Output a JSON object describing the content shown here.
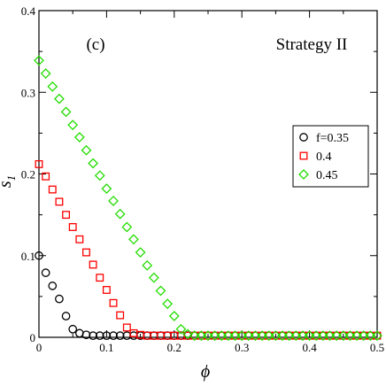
{
  "chart_data": {
    "type": "scatter",
    "panel_label": "(c)",
    "annotation": "Strategy II",
    "xlabel": "ϕ",
    "ylabel": "s",
    "ylabel_subscript": "1",
    "xlim": [
      0,
      0.5
    ],
    "ylim": [
      0,
      0.4
    ],
    "x_ticks": [
      0,
      0.1,
      0.2,
      0.3,
      0.4,
      0.5
    ],
    "x_tick_labels": [
      "0",
      "0.1",
      "0.2",
      "0.3",
      "0.4",
      "0.5"
    ],
    "y_ticks": [
      0,
      0.1,
      0.2,
      0.3,
      0.4
    ],
    "y_tick_labels": [
      "0",
      "0.1",
      "0.2",
      "0.3",
      "0.4"
    ],
    "grid": false,
    "legend_position": "right",
    "series": [
      {
        "name": "f=0.35",
        "marker": "circle",
        "color": "#000000",
        "x": [
          0,
          0.01,
          0.02,
          0.03,
          0.04,
          0.05,
          0.06,
          0.07,
          0.08,
          0.09,
          0.1,
          0.11,
          0.12,
          0.13,
          0.14,
          0.15,
          0.16,
          0.17,
          0.18,
          0.19,
          0.2,
          0.21,
          0.22,
          0.23,
          0.24,
          0.25,
          0.26,
          0.27,
          0.28,
          0.29,
          0.3,
          0.31,
          0.32,
          0.33,
          0.34,
          0.35,
          0.36,
          0.37,
          0.38,
          0.39,
          0.4,
          0.41,
          0.42,
          0.43,
          0.44,
          0.45,
          0.46,
          0.47,
          0.48,
          0.49,
          0.5
        ],
        "y": [
          0.1,
          0.079,
          0.063,
          0.047,
          0.026,
          0.01,
          0.005,
          0.003,
          0.002,
          0.002,
          0.002,
          0.002,
          0.002,
          0.002,
          0.002,
          0.002,
          0.002,
          0.002,
          0.002,
          0.002,
          0.002,
          0.002,
          0.002,
          0.002,
          0.002,
          0.002,
          0.002,
          0.002,
          0.002,
          0.002,
          0.002,
          0.002,
          0.002,
          0.002,
          0.002,
          0.002,
          0.002,
          0.002,
          0.002,
          0.002,
          0.002,
          0.002,
          0.002,
          0.002,
          0.002,
          0.002,
          0.002,
          0.002,
          0.002,
          0.002,
          0.002
        ]
      },
      {
        "name": "0.4",
        "marker": "square",
        "color": "#ff0000",
        "x": [
          0,
          0.01,
          0.02,
          0.03,
          0.04,
          0.05,
          0.06,
          0.07,
          0.08,
          0.09,
          0.1,
          0.11,
          0.12,
          0.13,
          0.14,
          0.15,
          0.16,
          0.17,
          0.18,
          0.19,
          0.2,
          0.21,
          0.22,
          0.23,
          0.24,
          0.25,
          0.26,
          0.27,
          0.28,
          0.29,
          0.3,
          0.31,
          0.32,
          0.33,
          0.34,
          0.35,
          0.36,
          0.37,
          0.38,
          0.39,
          0.4,
          0.41,
          0.42,
          0.43,
          0.44,
          0.45,
          0.46,
          0.47,
          0.48,
          0.49,
          0.5
        ],
        "y": [
          0.212,
          0.197,
          0.181,
          0.166,
          0.15,
          0.135,
          0.12,
          0.104,
          0.089,
          0.073,
          0.058,
          0.042,
          0.027,
          0.012,
          0.005,
          0.003,
          0.002,
          0.002,
          0.002,
          0.002,
          0.002,
          0.002,
          0.002,
          0.002,
          0.002,
          0.002,
          0.002,
          0.002,
          0.002,
          0.002,
          0.002,
          0.002,
          0.002,
          0.002,
          0.002,
          0.002,
          0.002,
          0.002,
          0.002,
          0.002,
          0.002,
          0.002,
          0.002,
          0.002,
          0.002,
          0.002,
          0.002,
          0.002,
          0.002,
          0.002,
          0.002
        ]
      },
      {
        "name": "0.45",
        "marker": "diamond",
        "color": "#22dd00",
        "x": [
          0,
          0.01,
          0.02,
          0.03,
          0.04,
          0.05,
          0.06,
          0.07,
          0.08,
          0.09,
          0.1,
          0.11,
          0.12,
          0.13,
          0.14,
          0.15,
          0.16,
          0.17,
          0.18,
          0.19,
          0.2,
          0.21,
          0.22,
          0.23,
          0.24,
          0.25,
          0.26,
          0.27,
          0.28,
          0.29,
          0.3,
          0.31,
          0.32,
          0.33,
          0.34,
          0.35,
          0.36,
          0.37,
          0.38,
          0.39,
          0.4,
          0.41,
          0.42,
          0.43,
          0.44,
          0.45,
          0.46,
          0.47,
          0.48,
          0.49,
          0.5
        ],
        "y": [
          0.339,
          0.323,
          0.307,
          0.292,
          0.276,
          0.26,
          0.245,
          0.229,
          0.213,
          0.198,
          0.182,
          0.167,
          0.151,
          0.135,
          0.12,
          0.104,
          0.088,
          0.073,
          0.057,
          0.041,
          0.026,
          0.01,
          0.004,
          0.002,
          0.002,
          0.002,
          0.002,
          0.002,
          0.002,
          0.002,
          0.002,
          0.002,
          0.002,
          0.002,
          0.002,
          0.002,
          0.002,
          0.002,
          0.002,
          0.002,
          0.002,
          0.002,
          0.002,
          0.002,
          0.002,
          0.002,
          0.002,
          0.002,
          0.002,
          0.002,
          0.002
        ]
      }
    ]
  }
}
